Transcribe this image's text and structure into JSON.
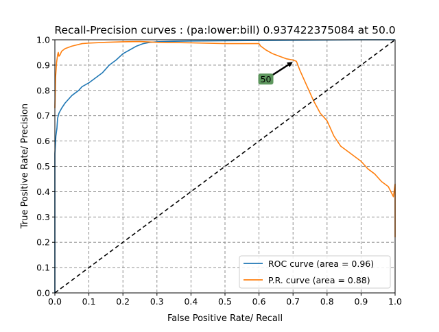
{
  "chart_data": {
    "type": "line",
    "title": "Recall-Precision curves : (pa:lower:bill) 0.937422375084 at 50.0",
    "xlabel": "False Positive Rate/ Recall",
    "ylabel": "True Positive Rate/ Precision",
    "xlim": [
      0.0,
      1.0
    ],
    "ylim": [
      0.0,
      1.0
    ],
    "xticks": [
      "0.0",
      "0.1",
      "0.2",
      "0.3",
      "0.4",
      "0.5",
      "0.6",
      "0.7",
      "0.8",
      "0.9",
      "1.0"
    ],
    "yticks": [
      "0.0",
      "0.1",
      "0.2",
      "0.3",
      "0.4",
      "0.5",
      "0.6",
      "0.7",
      "0.8",
      "0.9",
      "1.0"
    ],
    "grid": true,
    "legend_position": "lower-right",
    "series": [
      {
        "name": "ROC curve (area = 0.96)",
        "color": "#1f77b4",
        "x": [
          0.0,
          0.0,
          0.003,
          0.006,
          0.008,
          0.012,
          0.02,
          0.03,
          0.05,
          0.07,
          0.08,
          0.1,
          0.12,
          0.14,
          0.16,
          0.18,
          0.2,
          0.22,
          0.24,
          0.26,
          0.28,
          0.3,
          0.35,
          0.4,
          0.5,
          0.6,
          0.7,
          0.8,
          0.9,
          1.0
        ],
        "y": [
          0.0,
          0.55,
          0.62,
          0.65,
          0.69,
          0.71,
          0.73,
          0.75,
          0.78,
          0.8,
          0.815,
          0.83,
          0.85,
          0.87,
          0.9,
          0.92,
          0.945,
          0.96,
          0.975,
          0.985,
          0.99,
          0.992,
          0.994,
          0.995,
          0.996,
          0.997,
          0.998,
          0.999,
          1.0,
          1.0
        ]
      },
      {
        "name": "P.R. curve (area = 0.88)",
        "color": "#ff7f0e",
        "x": [
          0.0,
          0.002,
          0.005,
          0.008,
          0.01,
          0.012,
          0.015,
          0.02,
          0.03,
          0.05,
          0.08,
          0.1,
          0.15,
          0.2,
          0.25,
          0.3,
          0.4,
          0.5,
          0.6,
          0.605,
          0.62,
          0.64,
          0.66,
          0.68,
          0.7,
          0.71,
          0.72,
          0.74,
          0.76,
          0.78,
          0.8,
          0.82,
          0.84,
          0.86,
          0.88,
          0.9,
          0.92,
          0.94,
          0.96,
          0.98,
          0.995,
          1.0,
          1.0
        ],
        "y": [
          0.73,
          0.85,
          0.91,
          0.94,
          0.95,
          0.935,
          0.94,
          0.955,
          0.965,
          0.975,
          0.985,
          0.987,
          0.99,
          0.992,
          0.993,
          0.99,
          0.988,
          0.985,
          0.985,
          0.975,
          0.96,
          0.945,
          0.935,
          0.925,
          0.92,
          0.915,
          0.88,
          0.82,
          0.76,
          0.71,
          0.68,
          0.62,
          0.58,
          0.56,
          0.54,
          0.52,
          0.49,
          0.47,
          0.44,
          0.42,
          0.38,
          0.43,
          0.22
        ]
      },
      {
        "name": "",
        "color": "#000000",
        "dashed": true,
        "x": [
          0.0,
          1.0
        ],
        "y": [
          0.0,
          1.0
        ]
      }
    ],
    "annotations": [
      {
        "text": "50",
        "box_color": "#4c8c4c",
        "text_x": 0.62,
        "text_y": 0.845,
        "arrow_x": 0.7,
        "arrow_y": 0.915
      }
    ]
  }
}
